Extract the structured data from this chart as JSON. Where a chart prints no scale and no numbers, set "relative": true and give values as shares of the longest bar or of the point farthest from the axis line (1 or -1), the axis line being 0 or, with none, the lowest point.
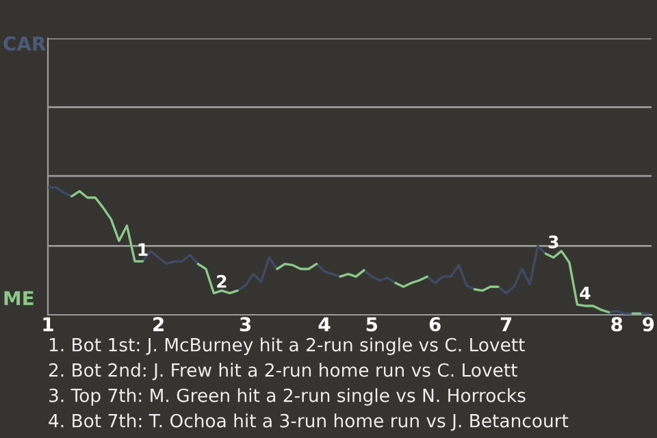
{
  "chart_data": {
    "type": "line",
    "relative": true,
    "categories": [
      "1",
      null,
      null,
      null,
      null,
      null,
      null,
      null,
      null,
      null,
      null,
      null,
      null,
      null,
      "2",
      null,
      null,
      null,
      null,
      null,
      null,
      null,
      null,
      null,
      null,
      "3",
      null,
      null,
      null,
      null,
      null,
      null,
      null,
      null,
      null,
      "4",
      null,
      null,
      null,
      null,
      null,
      "5",
      null,
      null,
      null,
      null,
      null,
      null,
      null,
      "6",
      null,
      null,
      null,
      null,
      null,
      null,
      null,
      null,
      "7",
      null,
      null,
      null,
      null,
      null,
      null,
      null,
      null,
      null,
      null,
      null,
      null,
      null,
      "8",
      null,
      null,
      null,
      "9"
    ],
    "series": [
      {
        "color": "#3f4b66",
        "values": [
          1.0,
          1.0,
          0.96,
          0.93,
          0.97,
          0.92,
          0.92,
          0.84,
          0.75,
          0.58,
          0.7,
          0.42,
          0.42,
          0.5,
          0.45,
          0.4,
          0.42,
          0.42,
          0.47,
          0.4,
          0.36,
          0.17,
          0.19,
          0.17,
          0.19,
          0.23,
          0.32,
          0.26,
          0.45,
          0.36,
          0.4,
          0.39,
          0.36,
          0.36,
          0.4,
          0.34,
          0.32,
          0.3,
          0.32,
          0.3,
          0.35,
          0.3,
          0.27,
          0.29,
          0.25,
          0.22,
          0.25,
          0.27,
          0.3,
          0.25,
          0.3,
          0.3,
          0.39,
          0.23,
          0.2,
          0.19,
          0.22,
          0.22,
          0.17,
          0.22,
          0.36,
          0.24,
          0.54,
          0.48,
          0.45,
          0.5,
          0.41,
          0.08,
          0.07,
          0.07,
          0.04,
          0.02,
          0.03,
          0.01,
          0.01,
          0.01,
          0.01
        ]
      },
      {
        "color": "#8cc887",
        "values": [
          null,
          null,
          null,
          0.93,
          0.97,
          0.92,
          0.92,
          0.84,
          0.75,
          0.58,
          0.7,
          0.42,
          0.42,
          null,
          null,
          null,
          null,
          null,
          null,
          0.4,
          0.36,
          0.17,
          0.19,
          0.17,
          0.19,
          null,
          null,
          null,
          null,
          0.36,
          0.4,
          0.39,
          0.36,
          0.36,
          0.4,
          null,
          null,
          0.3,
          0.32,
          0.3,
          0.35,
          null,
          null,
          null,
          0.25,
          0.22,
          0.25,
          0.27,
          0.3,
          null,
          null,
          null,
          null,
          null,
          0.2,
          0.19,
          0.22,
          0.22,
          null,
          null,
          null,
          null,
          null,
          0.48,
          0.45,
          0.5,
          0.41,
          0.08,
          0.07,
          0.07,
          0.04,
          0.02,
          null,
          null,
          0.01,
          0.01,
          null
        ]
      }
    ],
    "ref_lines": [
      {
        "axis": "y",
        "value": 0.54,
        "color": "#9a9a9a"
      },
      {
        "axis": "y",
        "value": 1.09,
        "color": "#9a9a9a"
      },
      {
        "axis": "y",
        "value": 1.63,
        "color": "#9a9a9a"
      },
      {
        "axis": "y",
        "value": 2.17,
        "color": "#9a9a9a"
      }
    ],
    "legend": false,
    "marker": "none",
    "line_style": "solid",
    "annotations": [
      {
        "text": "1",
        "y": 0.42
      },
      {
        "text": "2",
        "y": 0.17
      },
      {
        "text": "3",
        "y": 0.48
      },
      {
        "text": "4",
        "y": 0.08
      },
      "CAR",
      "ME",
      "1. Bot 1st: J. McBurney hit a 2-run single vs C. Lovett",
      "2. Bot 2nd: J. Frew hit a 2-run home run vs C. Lovett",
      "3. Top 7th: M. Green hit a 2-run single vs N. Horrocks",
      "4. Bot 7th: T. Ochoa hit a 3-run home run vs J. Betancourt"
    ]
  }
}
